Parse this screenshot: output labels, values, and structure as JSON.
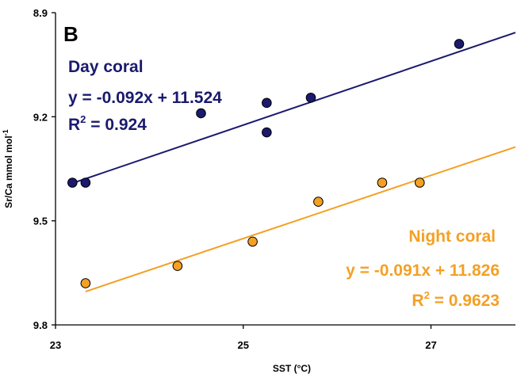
{
  "chart_data": {
    "type": "scatter",
    "panel_label": "B",
    "xlabel": "SST (°C)",
    "ylabel_main": "Sr/Ca mmol mol",
    "ylabel_sup": "-1",
    "xlim": [
      23,
      27.9
    ],
    "ylim": [
      8.9,
      9.8
    ],
    "y_inverted": true,
    "xticks": [
      23,
      25,
      27
    ],
    "yticks": [
      8.9,
      9.2,
      9.5,
      9.8
    ],
    "xtick_labels": [
      "23",
      "25",
      "27"
    ],
    "ytick_labels": [
      "8.9",
      "9.2",
      "9.5",
      "9.8"
    ],
    "series": [
      {
        "name": "Day coral",
        "color": "#1a1a6e",
        "points": [
          [
            23.18,
            9.39
          ],
          [
            23.32,
            9.39
          ],
          [
            24.55,
            9.19
          ],
          [
            25.25,
            9.16
          ],
          [
            25.25,
            9.245
          ],
          [
            25.72,
            9.145
          ],
          [
            27.3,
            8.99
          ]
        ],
        "fit": {
          "slope": -0.092,
          "intercept": 11.524,
          "x_range": [
            23.18,
            27.9
          ]
        },
        "annotation": {
          "name": "Day coral",
          "equation": "y = -0.092x + 11.524",
          "r2_prefix": "R",
          "r2_sup": "2",
          "r2_value": " = 0.924"
        }
      },
      {
        "name": "Night coral",
        "color": "#f4a024",
        "points": [
          [
            23.32,
            9.68
          ],
          [
            24.3,
            9.63
          ],
          [
            25.1,
            9.56
          ],
          [
            25.8,
            9.445
          ],
          [
            26.48,
            9.39
          ],
          [
            26.88,
            9.39
          ]
        ],
        "fit": {
          "slope": -0.091,
          "intercept": 11.826,
          "x_range": [
            23.32,
            27.9
          ]
        },
        "annotation": {
          "name": "Night coral",
          "equation": "y = -0.091x + 11.826",
          "r2_prefix": "R",
          "r2_sup": "2",
          "r2_value": " = 0.9623"
        }
      }
    ],
    "grid": false,
    "legend": "none"
  }
}
